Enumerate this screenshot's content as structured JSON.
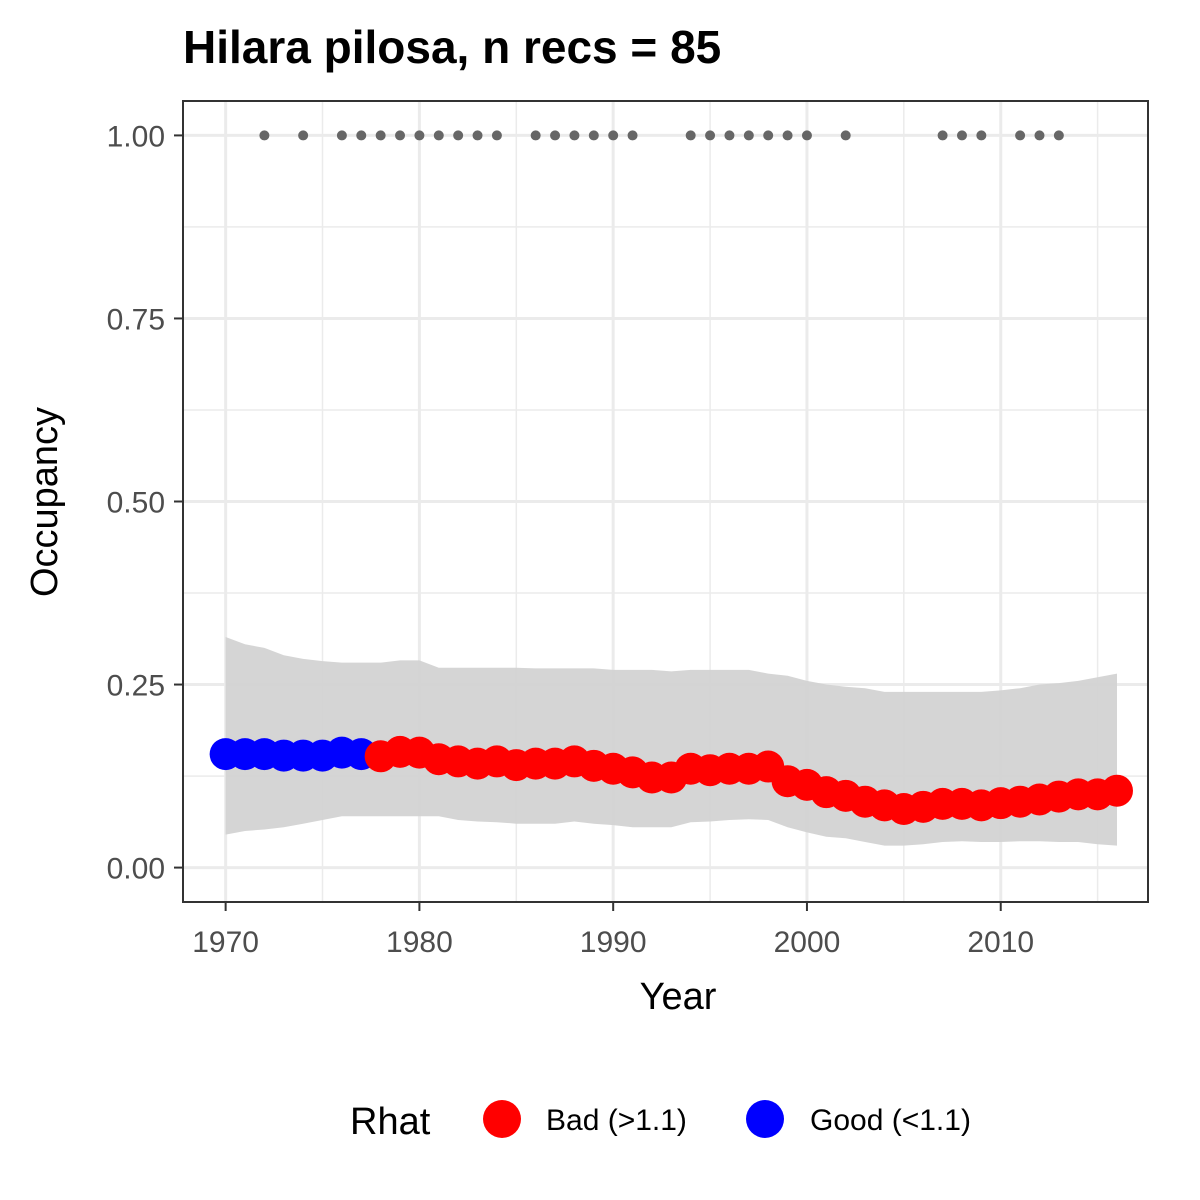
{
  "chart_data": {
    "type": "line",
    "title": "Hilara pilosa, n recs = 85",
    "xlabel": "Year",
    "ylabel": "Occupancy",
    "xlim": [
      1967.8,
      2017.6
    ],
    "ylim": [
      -0.047,
      1.047
    ],
    "x_ticks": [
      1970,
      1980,
      1990,
      2000,
      2010
    ],
    "x_tick_labels": [
      "1970",
      "1980",
      "1990",
      "2000",
      "2010"
    ],
    "y_ticks": [
      0,
      0.25,
      0.5,
      0.75,
      1.0
    ],
    "y_tick_labels": [
      "0.00",
      "0.25",
      "0.50",
      "0.75",
      "1.00"
    ],
    "grid": true,
    "legend": {
      "title": "Rhat",
      "position": "bottom",
      "entries": [
        {
          "label": "Bad (>1.1)",
          "color": "#ff0000"
        },
        {
          "label": "Good (<1.1)",
          "color": "#0000ff"
        }
      ]
    },
    "colors": {
      "bad": "#ff0000",
      "good": "#0000ff",
      "ribbon": "#d3d3d3",
      "records": "#666666"
    },
    "occupancy": {
      "years": [
        1970,
        1971,
        1972,
        1973,
        1974,
        1975,
        1976,
        1977,
        1978,
        1979,
        1980,
        1981,
        1982,
        1983,
        1984,
        1985,
        1986,
        1987,
        1988,
        1989,
        1990,
        1991,
        1992,
        1993,
        1994,
        1995,
        1996,
        1997,
        1998,
        1999,
        2000,
        2001,
        2002,
        2003,
        2004,
        2005,
        2006,
        2007,
        2008,
        2009,
        2010,
        2011,
        2012,
        2013,
        2014,
        2015,
        2016
      ],
      "mean": [
        0.155,
        0.155,
        0.155,
        0.153,
        0.153,
        0.153,
        0.157,
        0.155,
        0.152,
        0.158,
        0.157,
        0.148,
        0.145,
        0.142,
        0.145,
        0.14,
        0.142,
        0.142,
        0.145,
        0.139,
        0.135,
        0.13,
        0.123,
        0.123,
        0.135,
        0.133,
        0.135,
        0.135,
        0.138,
        0.118,
        0.113,
        0.103,
        0.098,
        0.09,
        0.085,
        0.08,
        0.083,
        0.087,
        0.087,
        0.085,
        0.088,
        0.09,
        0.093,
        0.097,
        0.1,
        0.1,
        0.105
      ],
      "lower": [
        0.045,
        0.05,
        0.052,
        0.055,
        0.06,
        0.065,
        0.07,
        0.07,
        0.07,
        0.07,
        0.07,
        0.07,
        0.065,
        0.063,
        0.062,
        0.06,
        0.06,
        0.06,
        0.063,
        0.06,
        0.058,
        0.055,
        0.055,
        0.055,
        0.062,
        0.063,
        0.065,
        0.066,
        0.065,
        0.055,
        0.048,
        0.042,
        0.04,
        0.035,
        0.03,
        0.03,
        0.032,
        0.035,
        0.036,
        0.035,
        0.035,
        0.036,
        0.036,
        0.035,
        0.035,
        0.032,
        0.03
      ],
      "upper": [
        0.315,
        0.305,
        0.3,
        0.29,
        0.285,
        0.282,
        0.28,
        0.28,
        0.28,
        0.283,
        0.283,
        0.273,
        0.273,
        0.273,
        0.273,
        0.273,
        0.272,
        0.272,
        0.272,
        0.272,
        0.27,
        0.27,
        0.27,
        0.268,
        0.27,
        0.27,
        0.27,
        0.27,
        0.265,
        0.262,
        0.255,
        0.25,
        0.247,
        0.245,
        0.24,
        0.24,
        0.24,
        0.24,
        0.24,
        0.24,
        0.242,
        0.245,
        0.25,
        0.252,
        0.255,
        0.26,
        0.265
      ],
      "rhat": [
        "Good",
        "Good",
        "Good",
        "Good",
        "Good",
        "Good",
        "Good",
        "Good",
        "Bad",
        "Bad",
        "Bad",
        "Bad",
        "Bad",
        "Bad",
        "Bad",
        "Bad",
        "Bad",
        "Bad",
        "Bad",
        "Bad",
        "Bad",
        "Bad",
        "Bad",
        "Bad",
        "Bad",
        "Bad",
        "Bad",
        "Bad",
        "Bad",
        "Bad",
        "Bad",
        "Bad",
        "Bad",
        "Bad",
        "Bad",
        "Bad",
        "Bad",
        "Bad",
        "Bad",
        "Bad",
        "Bad",
        "Bad",
        "Bad",
        "Bad",
        "Bad",
        "Bad",
        "Bad"
      ]
    },
    "record_years": {
      "y": 1.0,
      "x": [
        1972,
        1974,
        1976,
        1977,
        1978,
        1979,
        1980,
        1981,
        1982,
        1983,
        1984,
        1986,
        1987,
        1988,
        1989,
        1990,
        1991,
        1994,
        1995,
        1996,
        1997,
        1998,
        1999,
        2000,
        2002,
        2007,
        2008,
        2009,
        2011,
        2012,
        2013
      ]
    }
  }
}
